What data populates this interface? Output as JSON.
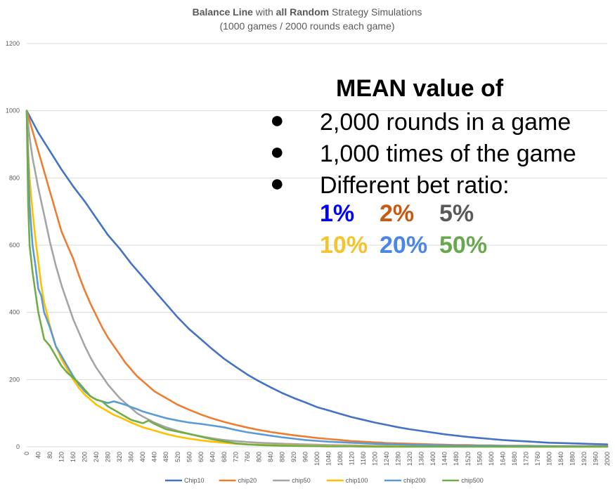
{
  "chart_data": {
    "type": "line",
    "title_parts": [
      {
        "text": "Balance Line",
        "bold": true
      },
      {
        "text": " with ",
        "bold": false
      },
      {
        "text": "all Random",
        "bold": true
      },
      {
        "text": " Strategy Simulations",
        "bold": false
      }
    ],
    "subtitle": "(1000 games / 2000 rounds each game)",
    "xlabel": "",
    "ylabel": "",
    "xlim": [
      0,
      2000
    ],
    "ylim": [
      0,
      1200
    ],
    "yticks": [
      0,
      200,
      400,
      600,
      800,
      1000,
      1200
    ],
    "xtick_step": 40,
    "grid": true,
    "legend_position": "bottom",
    "series": [
      {
        "name": "Chip10",
        "color": "#4472c4",
        "x": [
          0,
          40,
          80,
          120,
          160,
          200,
          240,
          280,
          320,
          360,
          400,
          440,
          480,
          520,
          560,
          600,
          640,
          680,
          720,
          760,
          800,
          840,
          880,
          920,
          960,
          1000,
          1040,
          1080,
          1120,
          1160,
          1200,
          1240,
          1280,
          1320,
          1360,
          1400,
          1440,
          1480,
          1520,
          1560,
          1600,
          1640,
          1680,
          1720,
          1760,
          1800,
          1840,
          1880,
          1920,
          1960,
          2000
        ],
        "y": [
          1000,
          935,
          880,
          825,
          775,
          730,
          680,
          630,
          590,
          545,
          505,
          465,
          425,
          385,
          350,
          320,
          290,
          262,
          238,
          215,
          195,
          177,
          160,
          145,
          132,
          118,
          108,
          98,
          88,
          80,
          72,
          65,
          58,
          52,
          47,
          42,
          37,
          33,
          29,
          26,
          23,
          20,
          18,
          16,
          14,
          12,
          11,
          10,
          9,
          8,
          7
        ]
      },
      {
        "name": "chip20",
        "color": "#ed7d31",
        "x": [
          0,
          20,
          40,
          60,
          80,
          100,
          120,
          140,
          160,
          180,
          200,
          220,
          240,
          260,
          280,
          300,
          320,
          340,
          360,
          380,
          400,
          420,
          440,
          480,
          520,
          560,
          600,
          640,
          680,
          720,
          760,
          800,
          840,
          880,
          920,
          960,
          1000,
          1040,
          1080,
          1120,
          1160,
          1200,
          1240,
          1280,
          1320,
          1360,
          1400,
          1440,
          1480,
          1520,
          1560,
          1600,
          1640,
          1680,
          1720,
          1800,
          1880,
          1960,
          2000
        ],
        "y": [
          1000,
          940,
          880,
          820,
          760,
          700,
          640,
          600,
          560,
          510,
          465,
          425,
          390,
          355,
          325,
          300,
          275,
          250,
          230,
          210,
          195,
          180,
          165,
          145,
          125,
          110,
          96,
          84,
          74,
          65,
          57,
          50,
          44,
          39,
          34,
          30,
          26,
          23,
          20,
          17,
          15,
          13,
          11,
          10,
          9,
          8,
          7,
          6,
          5,
          5,
          4,
          4,
          3,
          3,
          3,
          2,
          2,
          2,
          2
        ]
      },
      {
        "name": "chip50",
        "color": "#a5a5a5",
        "x": [
          0,
          10,
          20,
          40,
          60,
          80,
          100,
          120,
          140,
          160,
          180,
          200,
          220,
          240,
          260,
          280,
          300,
          320,
          340,
          360,
          380,
          400,
          440,
          480,
          520,
          560,
          600,
          640,
          680,
          720,
          760,
          800,
          880,
          960,
          1040,
          1120,
          1200,
          1280,
          1360,
          1440,
          1520,
          1600,
          1680,
          1760,
          1840,
          1920,
          2000
        ],
        "y": [
          1000,
          920,
          860,
          770,
          690,
          610,
          540,
          480,
          430,
          380,
          340,
          300,
          265,
          235,
          210,
          185,
          165,
          145,
          130,
          115,
          100,
          90,
          72,
          58,
          47,
          38,
          31,
          25,
          20,
          17,
          14,
          12,
          9,
          7,
          5,
          4,
          3,
          3,
          2,
          2,
          2,
          1,
          1,
          1,
          1,
          1,
          1
        ]
      },
      {
        "name": "chip100",
        "color": "#ffc000",
        "x": [
          0,
          5,
          10,
          20,
          30,
          40,
          50,
          60,
          80,
          100,
          120,
          140,
          160,
          180,
          200,
          220,
          240,
          260,
          280,
          300,
          320,
          340,
          360,
          380,
          400,
          440,
          480,
          520,
          560,
          600,
          640,
          680,
          720,
          760,
          800,
          880,
          960,
          1040,
          1120,
          1200,
          1360,
          1520,
          1680,
          1840,
          2000
        ],
        "y": [
          1000,
          880,
          800,
          700,
          620,
          550,
          480,
          430,
          360,
          300,
          260,
          230,
          200,
          175,
          155,
          140,
          125,
          115,
          105,
          95,
          88,
          80,
          72,
          65,
          58,
          48,
          38,
          30,
          24,
          19,
          15,
          12,
          9,
          7,
          6,
          4,
          3,
          2,
          2,
          1,
          1,
          1,
          0,
          0,
          0
        ]
      },
      {
        "name": "chip200",
        "color": "#5b9bd5",
        "x": [
          0,
          5,
          10,
          20,
          30,
          40,
          50,
          60,
          80,
          100,
          120,
          140,
          160,
          180,
          200,
          220,
          240,
          260,
          280,
          300,
          320,
          340,
          360,
          380,
          400,
          440,
          480,
          520,
          560,
          600,
          640,
          680,
          720,
          760,
          800,
          840,
          880,
          920,
          960,
          1040,
          1120,
          1200,
          1280,
          1360,
          1440,
          1520,
          1600,
          1680,
          1760,
          1840,
          1920,
          2000
        ],
        "y": [
          1000,
          850,
          720,
          600,
          540,
          470,
          450,
          400,
          355,
          300,
          270,
          240,
          210,
          185,
          165,
          150,
          140,
          135,
          130,
          135,
          130,
          125,
          118,
          112,
          105,
          95,
          85,
          78,
          72,
          68,
          63,
          58,
          50,
          43,
          38,
          33,
          28,
          24,
          20,
          15,
          12,
          9,
          7,
          5,
          4,
          3,
          3,
          2,
          2,
          1,
          1,
          1
        ]
      },
      {
        "name": "chip500",
        "color": "#70ad47",
        "x": [
          0,
          5,
          10,
          20,
          30,
          40,
          50,
          60,
          70,
          80,
          100,
          120,
          140,
          160,
          180,
          200,
          220,
          240,
          260,
          280,
          300,
          320,
          340,
          360,
          380,
          400,
          420,
          440,
          460,
          480,
          520,
          560,
          600,
          640,
          680,
          720,
          760,
          800,
          880,
          960,
          1040,
          1120,
          1200,
          1280,
          1440,
          1600,
          1760,
          1920,
          2000
        ],
        "y": [
          1000,
          720,
          600,
          520,
          460,
          400,
          360,
          320,
          310,
          300,
          270,
          240,
          220,
          205,
          190,
          170,
          150,
          140,
          135,
          120,
          110,
          100,
          90,
          80,
          75,
          70,
          78,
          68,
          60,
          52,
          45,
          38,
          30,
          22,
          16,
          10,
          7,
          5,
          3,
          2,
          1,
          1,
          0,
          0,
          0,
          0,
          0,
          0,
          0
        ]
      }
    ],
    "annotation": {
      "heading": "MEAN value of",
      "bullets": [
        "2,000 rounds in a game",
        "1,000 times of the game",
        "Different bet ratio:"
      ],
      "bullet_symbol": "●",
      "ratios": [
        {
          "text": "1%",
          "color": "#0000ff"
        },
        {
          "text": "2%",
          "color": "#c55a11"
        },
        {
          "text": "5%",
          "color": "#595959"
        },
        {
          "text": "10%",
          "color": "#f4c430"
        },
        {
          "text": "20%",
          "color": "#4a86e8"
        },
        {
          "text": "50%",
          "color": "#6aa84f"
        }
      ]
    }
  }
}
